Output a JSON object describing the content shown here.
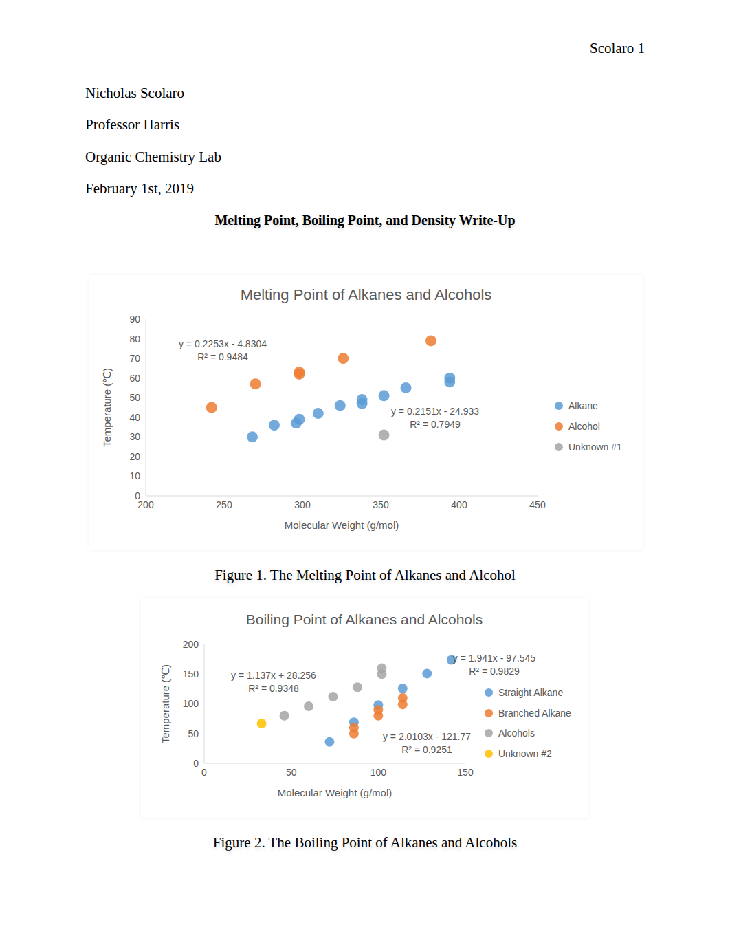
{
  "document": {
    "running_head": "Scolaro 1",
    "header_lines": [
      "Nicholas Scolaro",
      "Professor Harris",
      "Organic Chemistry Lab",
      "February 1st, 2019"
    ],
    "title": "Melting Point, Boiling Point, and Density Write-Up",
    "captions": [
      "Figure 1. The Melting Point of Alkanes and Alcohol",
      "Figure 2. The Boiling Point of Alkanes and Alcohols"
    ]
  },
  "chart_data": [
    {
      "type": "scatter",
      "title": "Melting Point of Alkanes and Alcohols",
      "x_label": "Molecular Weight (g/mol)",
      "y_label": "Temperature (℃)",
      "xlim": [
        200,
        450
      ],
      "xticks": [
        200,
        250,
        300,
        350,
        400,
        450
      ],
      "ylim": [
        0,
        90
      ],
      "yticks": [
        0,
        10,
        20,
        30,
        40,
        50,
        60,
        70,
        80,
        90
      ],
      "grid": false,
      "marker": "circle",
      "series": [
        {
          "name": "Alkane",
          "color": "#5b9bd5",
          "x": [
            268,
            282,
            296,
            298,
            310,
            324,
            338,
            338,
            352,
            366,
            394,
            394
          ],
          "values": [
            30,
            36,
            37,
            39,
            42,
            46,
            47,
            49,
            51,
            55,
            58,
            60
          ]
        },
        {
          "name": "Alcohol",
          "color": "#ed7d31",
          "x": [
            242,
            270,
            298,
            298,
            326,
            382
          ],
          "values": [
            45,
            57,
            62,
            63,
            70,
            79
          ]
        },
        {
          "name": "Unknown #1",
          "color": "#a5a5a5",
          "x": [
            352
          ],
          "values": [
            31
          ]
        }
      ],
      "annotations": [
        [
          "y = 0.2253x - 4.8304",
          "R² = 0.9484"
        ],
        [
          "y = 0.2151x - 24.933",
          "R² = 0.7949"
        ]
      ]
    },
    {
      "type": "scatter",
      "title": "Boiling Point of Alkanes and Alcohols",
      "x_label": "Molecular Weight (g/mol)",
      "y_label": "Temperature (℃)",
      "xlim": [
        0,
        150
      ],
      "xticks": [
        0,
        50,
        100,
        150
      ],
      "ylim": [
        0,
        200
      ],
      "yticks": [
        0,
        50,
        100,
        150,
        200
      ],
      "grid": false,
      "marker": "circle",
      "series": [
        {
          "name": "Straight Alkane",
          "color": "#5b9bd5",
          "x": [
            72,
            86,
            100,
            114,
            128,
            142
          ],
          "values": [
            36,
            69,
            98,
            126,
            151,
            174
          ]
        },
        {
          "name": "Branched Alkane",
          "color": "#ed7d31",
          "x": [
            86,
            86,
            100,
            100,
            114,
            114
          ],
          "values": [
            50,
            60,
            80,
            90,
            99,
            110
          ]
        },
        {
          "name": "Alcohols",
          "color": "#a5a5a5",
          "x": [
            46,
            60,
            74,
            88,
            102,
            102
          ],
          "values": [
            80,
            96,
            112,
            128,
            150,
            160
          ]
        },
        {
          "name": "Unknown #2",
          "color": "#ffc000",
          "x": [
            33
          ],
          "values": [
            67
          ]
        }
      ],
      "annotations": [
        [
          "y = 1.137x + 28.256",
          "R² = 0.9348"
        ],
        [
          "y = 1.941x - 97.545",
          "R² = 0.9829"
        ],
        [
          "y = 2.0103x - 121.77",
          "R² = 0.9251"
        ]
      ]
    }
  ]
}
